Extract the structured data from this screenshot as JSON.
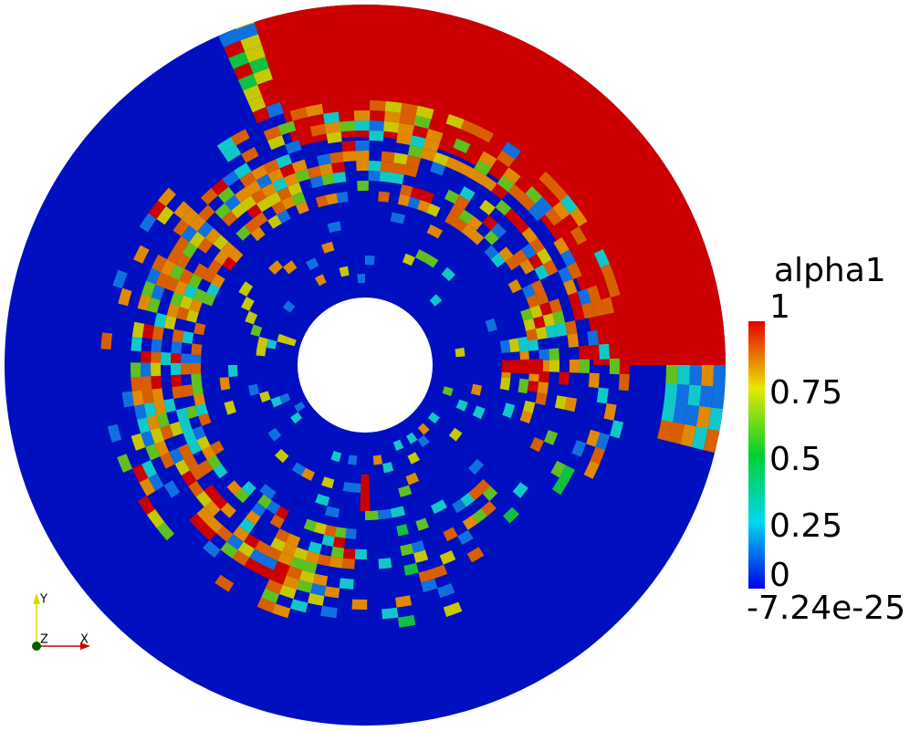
{
  "legend": {
    "title": "alpha1",
    "labels": [
      "1",
      "0.75",
      "0.5",
      "0.25",
      "0"
    ],
    "min_label": "-7.24e-25"
  },
  "axes": {
    "y": "Y",
    "z": "Z",
    "x": "X"
  }
}
